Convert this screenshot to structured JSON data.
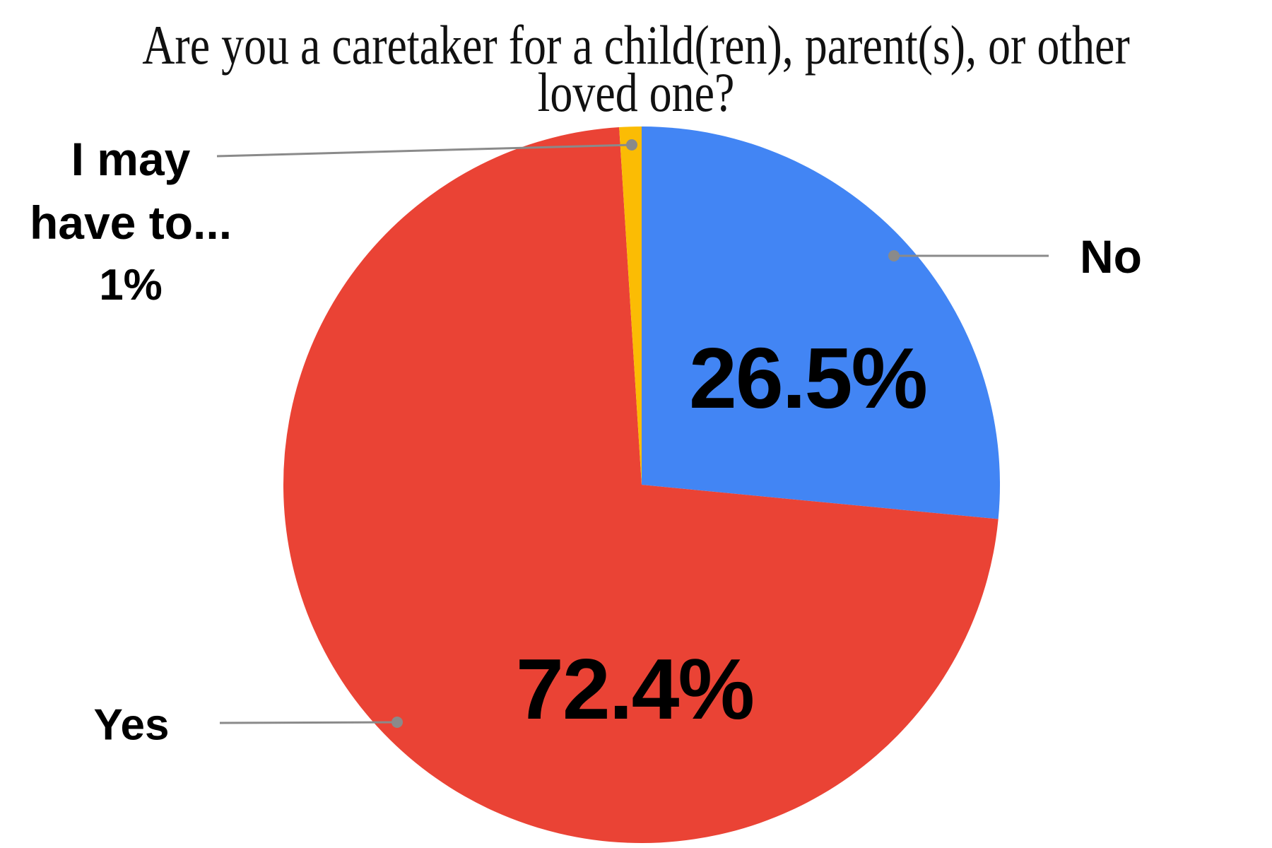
{
  "chart_data": {
    "type": "pie",
    "title": "Are you a caretaker for a child(ren), parent(s), or other loved one?",
    "title_lines": [
      "Are you a caretaker for a child(ren), parent(s), or other",
      "loved one?"
    ],
    "start_angle_deg": -90,
    "direction": "clockwise",
    "legend_position": "none",
    "label_style": "outside labels with leader lines; percentages inside slices",
    "slices": [
      {
        "label": "No",
        "value": 26.5,
        "display": "26.5%",
        "color": "#4285F4"
      },
      {
        "label": "Yes",
        "value": 72.4,
        "display": "72.4%",
        "color": "#EA4335"
      },
      {
        "label": "I may have to...",
        "label_lines": [
          "I may",
          "have to..."
        ],
        "value": 1.0,
        "display": "1%",
        "color": "#FBBC04"
      }
    ],
    "leader_line_color": "#8a8a8a",
    "background_color": "#ffffff",
    "text_color": "#000000"
  }
}
